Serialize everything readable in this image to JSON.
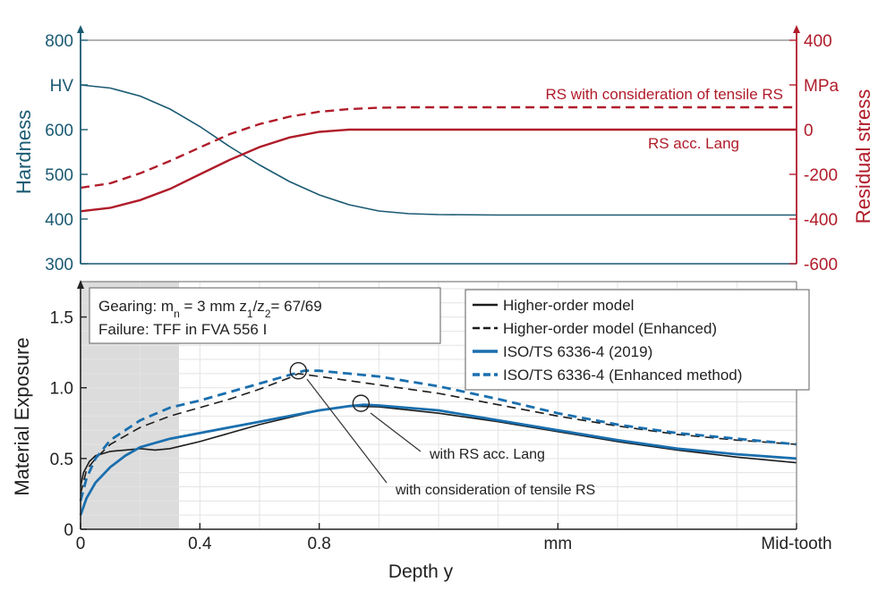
{
  "colors": {
    "blue": "#1a5a72",
    "red": "#b01c2a",
    "model_black": "#1c1c1c",
    "model_blue": "#1a6fae",
    "shade": "#dcdcdc",
    "grid": "#e3e3e3"
  },
  "x_axis": {
    "label": "Depth y",
    "ticks": [
      {
        "x": 0,
        "label": "0"
      },
      {
        "x": 0.4,
        "label": "0.4"
      },
      {
        "x": 0.8,
        "label": "0.8"
      },
      {
        "x": 1.6,
        "label": "mm"
      },
      {
        "x": 2.4,
        "label": "Mid-tooth"
      }
    ],
    "range": [
      0,
      2.4
    ]
  },
  "chart_data": [
    {
      "type": "line",
      "panel": "top",
      "grid": false,
      "x_range": [
        0,
        2.4
      ],
      "left_axis": {
        "label": "Hardness",
        "range": [
          300,
          800
        ],
        "ticks": [
          "300",
          "400",
          "500",
          "600",
          "HV",
          "800"
        ],
        "tick_values": [
          300,
          400,
          500,
          600,
          700,
          800
        ],
        "color": "#1a5a72"
      },
      "right_axis": {
        "label": "Residual stress",
        "range": [
          -600,
          400
        ],
        "ticks": [
          "-600",
          "-400",
          "-200",
          "0",
          "MPa",
          "400"
        ],
        "tick_values": [
          -600,
          -400,
          -200,
          0,
          200,
          400
        ],
        "color": "#b01c2a"
      },
      "series": [
        {
          "axis": "left",
          "style": "solid",
          "color": "#1a5a72",
          "points": [
            [
              0,
              700
            ],
            [
              0.1,
              693
            ],
            [
              0.2,
              675
            ],
            [
              0.3,
              646
            ],
            [
              0.4,
              607
            ],
            [
              0.5,
              562
            ],
            [
              0.6,
              521
            ],
            [
              0.7,
              484
            ],
            [
              0.8,
              454
            ],
            [
              0.9,
              432
            ],
            [
              1.0,
              418
            ],
            [
              1.1,
              412
            ],
            [
              1.2,
              410
            ],
            [
              1.4,
              409
            ],
            [
              1.6,
              409
            ],
            [
              1.8,
              409
            ],
            [
              2.0,
              409
            ],
            [
              2.2,
              409
            ],
            [
              2.4,
              409
            ]
          ]
        },
        {
          "name": "RS with consideration of tensile RS",
          "axis": "right",
          "style": "dashed",
          "color": "#b01c2a",
          "points": [
            [
              0,
              -260
            ],
            [
              0.1,
              -240
            ],
            [
              0.2,
              -195
            ],
            [
              0.3,
              -140
            ],
            [
              0.4,
              -80
            ],
            [
              0.5,
              -20
            ],
            [
              0.6,
              25
            ],
            [
              0.7,
              58
            ],
            [
              0.8,
              80
            ],
            [
              0.9,
              92
            ],
            [
              1.0,
              98
            ],
            [
              1.1,
              100
            ],
            [
              1.2,
              100
            ],
            [
              1.6,
              100
            ],
            [
              2.0,
              100
            ],
            [
              2.4,
              100
            ]
          ]
        },
        {
          "name": "RS acc. Lang",
          "axis": "right",
          "style": "solid",
          "color": "#b01c2a",
          "points": [
            [
              0,
              -365
            ],
            [
              0.1,
              -350
            ],
            [
              0.2,
              -315
            ],
            [
              0.3,
              -265
            ],
            [
              0.4,
              -200
            ],
            [
              0.5,
              -135
            ],
            [
              0.6,
              -78
            ],
            [
              0.7,
              -35
            ],
            [
              0.8,
              -10
            ],
            [
              0.9,
              0
            ],
            [
              1.0,
              0
            ],
            [
              1.2,
              0
            ],
            [
              1.6,
              0
            ],
            [
              2.0,
              0
            ],
            [
              2.4,
              0
            ]
          ]
        }
      ],
      "annotations": [
        "RS with consideration of tensile RS",
        "RS acc. Lang"
      ]
    },
    {
      "type": "line",
      "panel": "bottom",
      "grid": true,
      "x_range": [
        0,
        2.4
      ],
      "ylabel": "Material Exposure",
      "ylim": [
        0,
        1.75
      ],
      "y_ticks": [
        "0",
        "0.5",
        "1.0",
        "1.5"
      ],
      "y_tick_values": [
        0,
        0.5,
        1.0,
        1.5
      ],
      "shaded_region_x": [
        0,
        0.33
      ],
      "info_box": [
        "Failure: TFF in FVA 556 I"
      ],
      "legend_position": "top-right",
      "series": [
        {
          "name": "Higher-order model",
          "style": "solid",
          "color": "#1c1c1c",
          "points": [
            [
              0,
              0.3
            ],
            [
              0.01,
              0.4
            ],
            [
              0.03,
              0.48
            ],
            [
              0.05,
              0.52
            ],
            [
              0.1,
              0.55
            ],
            [
              0.15,
              0.56
            ],
            [
              0.2,
              0.57
            ],
            [
              0.25,
              0.56
            ],
            [
              0.3,
              0.57
            ],
            [
              0.4,
              0.62
            ],
            [
              0.5,
              0.68
            ],
            [
              0.6,
              0.74
            ],
            [
              0.7,
              0.79
            ],
            [
              0.8,
              0.84
            ],
            [
              0.9,
              0.87
            ],
            [
              1.0,
              0.865
            ],
            [
              1.2,
              0.82
            ],
            [
              1.4,
              0.76
            ],
            [
              1.6,
              0.69
            ],
            [
              1.8,
              0.62
            ],
            [
              2.0,
              0.56
            ],
            [
              2.2,
              0.51
            ],
            [
              2.4,
              0.47
            ]
          ]
        },
        {
          "name": "Higher-order model (Enhanced)",
          "style": "dashed",
          "color": "#1c1c1c",
          "points": [
            [
              0,
              0.25
            ],
            [
              0.02,
              0.42
            ],
            [
              0.05,
              0.5
            ],
            [
              0.1,
              0.6
            ],
            [
              0.2,
              0.72
            ],
            [
              0.3,
              0.8
            ],
            [
              0.4,
              0.86
            ],
            [
              0.5,
              0.92
            ],
            [
              0.6,
              0.99
            ],
            [
              0.7,
              1.07
            ],
            [
              0.73,
              1.1
            ],
            [
              0.8,
              1.08
            ],
            [
              0.9,
              1.05
            ],
            [
              1.0,
              1.02
            ],
            [
              1.2,
              0.96
            ],
            [
              1.4,
              0.88
            ],
            [
              1.6,
              0.8
            ],
            [
              1.8,
              0.73
            ],
            [
              2.0,
              0.67
            ],
            [
              2.2,
              0.63
            ],
            [
              2.4,
              0.6
            ]
          ]
        },
        {
          "name": "ISO/TS 6336-4 (2019)",
          "style": "solid",
          "color": "#1a6fae",
          "points": [
            [
              0,
              0.1
            ],
            [
              0.02,
              0.22
            ],
            [
              0.05,
              0.33
            ],
            [
              0.1,
              0.44
            ],
            [
              0.15,
              0.52
            ],
            [
              0.2,
              0.58
            ],
            [
              0.3,
              0.64
            ],
            [
              0.4,
              0.68
            ],
            [
              0.5,
              0.72
            ],
            [
              0.6,
              0.76
            ],
            [
              0.7,
              0.8
            ],
            [
              0.8,
              0.84
            ],
            [
              0.9,
              0.87
            ],
            [
              0.95,
              0.88
            ],
            [
              1.0,
              0.875
            ],
            [
              1.2,
              0.84
            ],
            [
              1.4,
              0.77
            ],
            [
              1.6,
              0.7
            ],
            [
              1.8,
              0.63
            ],
            [
              2.0,
              0.57
            ],
            [
              2.2,
              0.53
            ],
            [
              2.4,
              0.5
            ]
          ]
        },
        {
          "name": "ISO/TS 6336-4 (Enhanced method)",
          "style": "dashed",
          "color": "#1a6fae",
          "points": [
            [
              0,
              0.2
            ],
            [
              0.02,
              0.36
            ],
            [
              0.05,
              0.5
            ],
            [
              0.1,
              0.63
            ],
            [
              0.2,
              0.77
            ],
            [
              0.3,
              0.86
            ],
            [
              0.4,
              0.91
            ],
            [
              0.5,
              0.97
            ],
            [
              0.6,
              1.03
            ],
            [
              0.7,
              1.09
            ],
            [
              0.75,
              1.12
            ],
            [
              0.8,
              1.12
            ],
            [
              0.9,
              1.1
            ],
            [
              1.0,
              1.08
            ],
            [
              1.2,
              1.01
            ],
            [
              1.4,
              0.92
            ],
            [
              1.6,
              0.82
            ],
            [
              1.8,
              0.74
            ],
            [
              2.0,
              0.68
            ],
            [
              2.2,
              0.64
            ],
            [
              2.4,
              0.6
            ]
          ]
        }
      ],
      "markers": [
        {
          "x": 0.73,
          "y": 1.12
        },
        {
          "x": 0.94,
          "y": 0.89
        }
      ],
      "callouts": [
        "with RS acc. Lang",
        "with consideration of tensile RS"
      ]
    }
  ]
}
